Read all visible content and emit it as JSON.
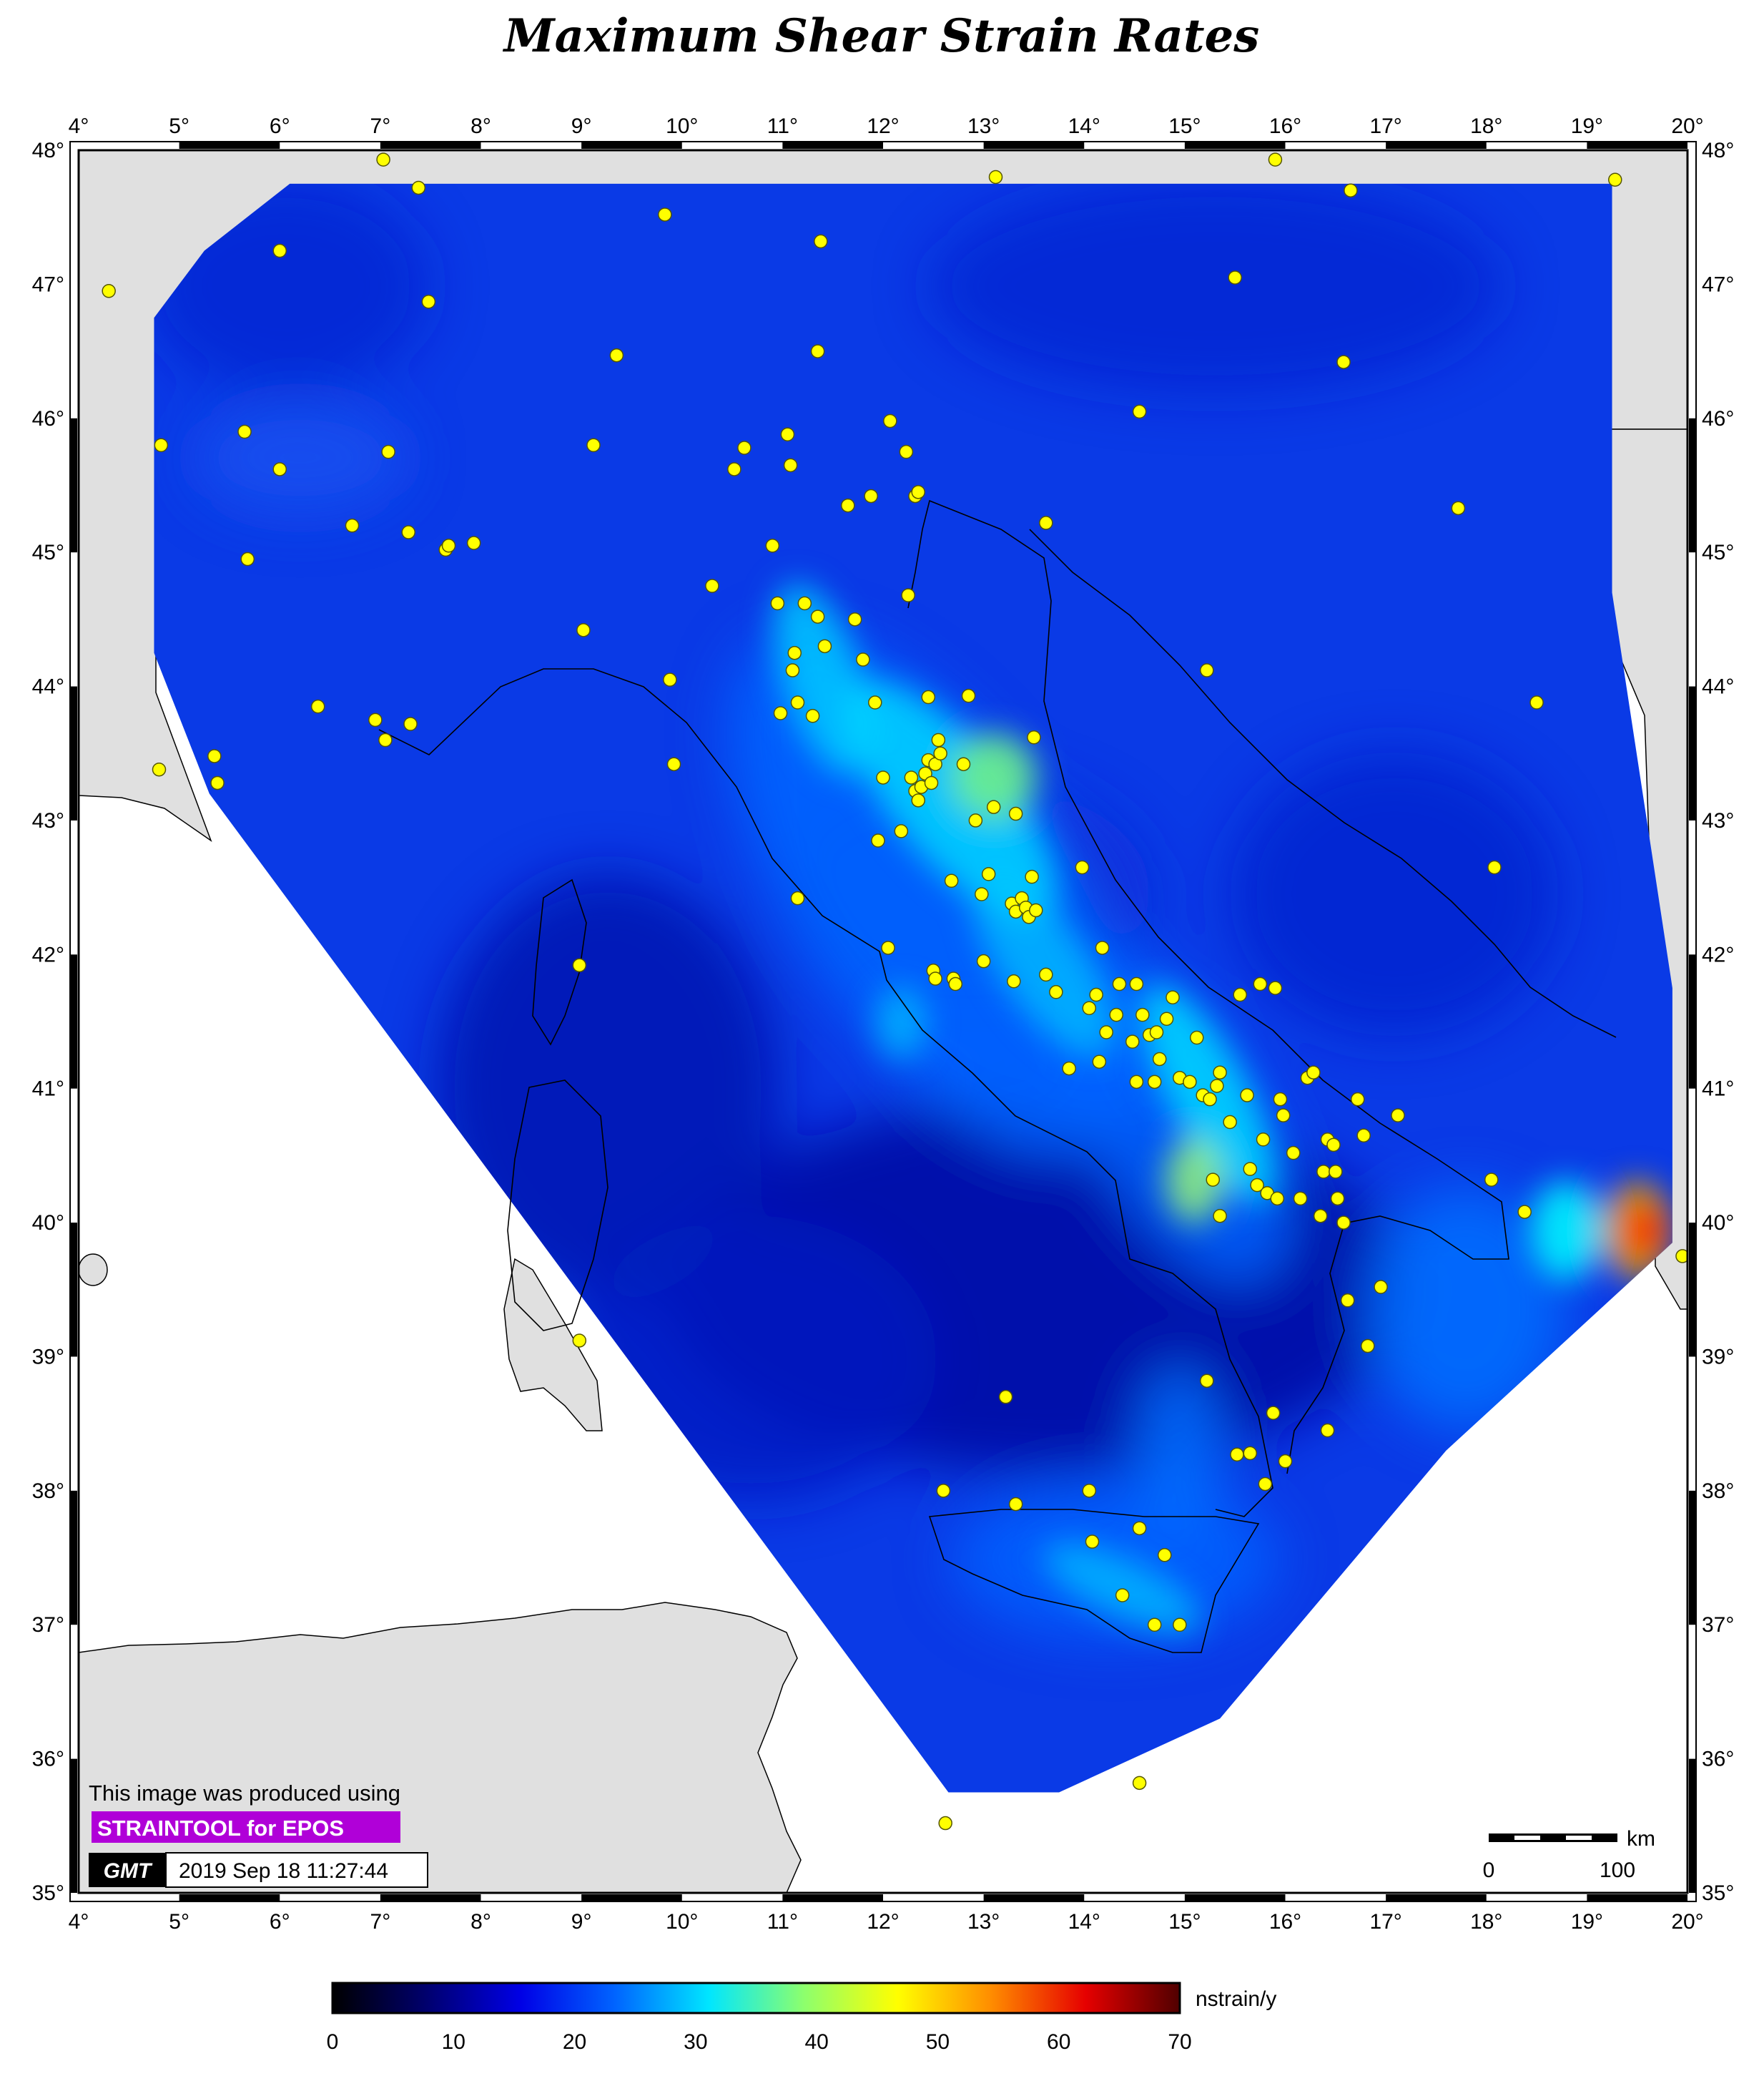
{
  "title": "Maximum Shear Strain Rates",
  "lon_ticks": [
    "4°",
    "5°",
    "6°",
    "7°",
    "8°",
    "9°",
    "10°",
    "11°",
    "12°",
    "13°",
    "14°",
    "15°",
    "16°",
    "17°",
    "18°",
    "19°",
    "20°"
  ],
  "lat_ticks": [
    "48°",
    "47°",
    "46°",
    "45°",
    "44°",
    "43°",
    "42°",
    "41°",
    "40°",
    "39°",
    "38°",
    "37°",
    "36°",
    "35°"
  ],
  "extent": {
    "lon_min": 4,
    "lon_max": 20,
    "lat_min": 35,
    "lat_max": 48
  },
  "credit": {
    "line1": "This image was produced using",
    "line2": "STRAINTOOL for EPOS",
    "logo": "GMT",
    "timestamp": "2019 Sep 18 11:27:44",
    "badge_color": "#b000d8"
  },
  "scale_bar": {
    "unit": "km",
    "labels": [
      "0",
      "100"
    ]
  },
  "colorbar": {
    "unit": "nstrain/y",
    "labels": [
      "0",
      "10",
      "20",
      "30",
      "40",
      "50",
      "60",
      "70"
    ],
    "stops": [
      "#000000",
      "#00006e",
      "#0000e6",
      "#0064ff",
      "#00e6ff",
      "#8cff6e",
      "#ffff00",
      "#ff8c00",
      "#e60000",
      "#500000"
    ]
  },
  "colors": {
    "strain_base": "#0a3ae6",
    "land": "#e0e0e0",
    "station": "#ffff00"
  },
  "stations": [
    [
      4.3,
      46.95
    ],
    [
      4.82,
      45.8
    ],
    [
      4.8,
      43.38
    ],
    [
      5.35,
      43.48
    ],
    [
      5.38,
      43.28
    ],
    [
      5.65,
      45.9
    ],
    [
      5.68,
      44.95
    ],
    [
      6.0,
      47.25
    ],
    [
      6.0,
      45.62
    ],
    [
      6.38,
      43.85
    ],
    [
      7.03,
      47.93
    ],
    [
      7.38,
      47.72
    ],
    [
      7.48,
      46.87
    ],
    [
      7.08,
      45.75
    ],
    [
      6.72,
      45.2
    ],
    [
      7.28,
      45.15
    ],
    [
      7.65,
      45.02
    ],
    [
      7.68,
      45.05
    ],
    [
      7.93,
      45.07
    ],
    [
      6.95,
      43.75
    ],
    [
      7.05,
      43.6
    ],
    [
      7.3,
      43.72
    ],
    [
      9.02,
      44.42
    ],
    [
      9.12,
      45.8
    ],
    [
      9.35,
      46.47
    ],
    [
      9.83,
      47.52
    ],
    [
      9.88,
      44.05
    ],
    [
      9.92,
      43.42
    ],
    [
      8.98,
      41.92
    ],
    [
      8.98,
      39.12
    ],
    [
      10.3,
      44.75
    ],
    [
      10.52,
      45.62
    ],
    [
      10.62,
      45.78
    ],
    [
      10.9,
      45.05
    ],
    [
      10.95,
      44.62
    ],
    [
      10.98,
      43.8
    ],
    [
      11.05,
      45.88
    ],
    [
      11.08,
      45.65
    ],
    [
      11.1,
      44.12
    ],
    [
      11.12,
      44.25
    ],
    [
      11.15,
      43.88
    ],
    [
      11.22,
      44.62
    ],
    [
      11.3,
      43.78
    ],
    [
      11.35,
      44.52
    ],
    [
      11.38,
      47.32
    ],
    [
      11.35,
      46.5
    ],
    [
      11.42,
      44.3
    ],
    [
      11.15,
      42.42
    ],
    [
      11.65,
      45.35
    ],
    [
      11.72,
      44.5
    ],
    [
      11.88,
      45.42
    ],
    [
      11.8,
      44.2
    ],
    [
      11.92,
      43.88
    ],
    [
      12.0,
      43.32
    ],
    [
      11.95,
      42.85
    ],
    [
      12.07,
      45.98
    ],
    [
      12.18,
      42.92
    ],
    [
      12.05,
      42.05
    ],
    [
      12.23,
      45.75
    ],
    [
      12.25,
      44.68
    ],
    [
      12.32,
      45.42
    ],
    [
      12.35,
      45.45
    ],
    [
      12.28,
      43.32
    ],
    [
      12.32,
      43.22
    ],
    [
      12.35,
      43.15
    ],
    [
      12.38,
      43.25
    ],
    [
      12.42,
      43.35
    ],
    [
      12.45,
      43.45
    ],
    [
      12.48,
      43.28
    ],
    [
      12.52,
      43.42
    ],
    [
      12.55,
      43.6
    ],
    [
      12.57,
      43.5
    ],
    [
      12.45,
      43.92
    ],
    [
      12.5,
      41.88
    ],
    [
      12.52,
      41.82
    ],
    [
      12.68,
      42.55
    ],
    [
      12.7,
      41.82
    ],
    [
      12.72,
      41.78
    ],
    [
      12.8,
      43.42
    ],
    [
      12.85,
      43.93
    ],
    [
      12.92,
      43.0
    ],
    [
      12.98,
      42.45
    ],
    [
      13.0,
      41.95
    ],
    [
      13.05,
      42.6
    ],
    [
      13.1,
      43.1
    ],
    [
      13.12,
      47.8
    ],
    [
      13.28,
      42.38
    ],
    [
      13.32,
      42.32
    ],
    [
      13.38,
      42.42
    ],
    [
      13.42,
      42.35
    ],
    [
      13.45,
      42.28
    ],
    [
      13.48,
      42.58
    ],
    [
      13.52,
      42.33
    ],
    [
      13.32,
      43.05
    ],
    [
      13.5,
      43.62
    ],
    [
      13.62,
      45.22
    ],
    [
      13.62,
      41.85
    ],
    [
      13.3,
      41.8
    ],
    [
      13.72,
      41.72
    ],
    [
      13.85,
      41.15
    ],
    [
      13.98,
      42.65
    ],
    [
      14.05,
      41.6
    ],
    [
      14.12,
      41.7
    ],
    [
      14.18,
      42.05
    ],
    [
      14.15,
      41.2
    ],
    [
      14.22,
      41.42
    ],
    [
      14.32,
      41.55
    ],
    [
      14.35,
      41.78
    ],
    [
      14.52,
      41.78
    ],
    [
      14.58,
      41.55
    ],
    [
      14.65,
      41.4
    ],
    [
      14.48,
      41.35
    ],
    [
      14.52,
      41.05
    ],
    [
      14.75,
      41.22
    ],
    [
      14.72,
      41.42
    ],
    [
      14.82,
      41.52
    ],
    [
      14.7,
      41.05
    ],
    [
      14.88,
      41.68
    ],
    [
      14.95,
      41.08
    ],
    [
      15.05,
      41.05
    ],
    [
      15.12,
      41.38
    ],
    [
      15.18,
      40.95
    ],
    [
      15.25,
      40.92
    ],
    [
      15.32,
      41.02
    ],
    [
      15.35,
      41.12
    ],
    [
      15.28,
      40.32
    ],
    [
      15.35,
      40.05
    ],
    [
      15.45,
      40.75
    ],
    [
      15.55,
      41.7
    ],
    [
      15.62,
      40.95
    ],
    [
      15.65,
      40.4
    ],
    [
      15.72,
      40.28
    ],
    [
      15.78,
      40.62
    ],
    [
      15.82,
      40.22
    ],
    [
      15.75,
      41.78
    ],
    [
      15.9,
      41.75
    ],
    [
      15.92,
      40.18
    ],
    [
      15.98,
      40.8
    ],
    [
      15.95,
      40.92
    ],
    [
      16.08,
      40.52
    ],
    [
      16.15,
      40.18
    ],
    [
      16.22,
      41.08
    ],
    [
      16.28,
      41.12
    ],
    [
      16.35,
      40.05
    ],
    [
      16.38,
      40.38
    ],
    [
      16.42,
      40.62
    ],
    [
      16.48,
      40.58
    ],
    [
      16.5,
      40.38
    ],
    [
      16.52,
      40.18
    ],
    [
      16.58,
      40.0
    ],
    [
      16.62,
      39.42
    ],
    [
      16.72,
      40.92
    ],
    [
      16.78,
      40.65
    ],
    [
      16.82,
      39.08
    ],
    [
      16.95,
      39.52
    ],
    [
      17.12,
      40.8
    ],
    [
      15.22,
      38.82
    ],
    [
      15.88,
      38.58
    ],
    [
      15.65,
      38.28
    ],
    [
      15.8,
      38.05
    ],
    [
      16.0,
      38.22
    ],
    [
      16.42,
      38.45
    ],
    [
      15.52,
      38.27
    ],
    [
      14.8,
      37.52
    ],
    [
      14.95,
      37.0
    ],
    [
      14.55,
      37.72
    ],
    [
      14.05,
      38.0
    ],
    [
      14.08,
      37.62
    ],
    [
      14.38,
      37.22
    ],
    [
      14.7,
      37.0
    ],
    [
      13.22,
      38.7
    ],
    [
      13.32,
      37.9
    ],
    [
      12.6,
      38.0
    ],
    [
      14.55,
      35.82
    ],
    [
      12.62,
      35.52
    ],
    [
      18.05,
      40.32
    ],
    [
      18.38,
      40.08
    ],
    [
      18.5,
      43.88
    ],
    [
      18.08,
      42.65
    ],
    [
      17.72,
      45.33
    ],
    [
      16.58,
      46.42
    ],
    [
      16.65,
      47.7
    ],
    [
      15.9,
      47.93
    ],
    [
      15.5,
      47.05
    ],
    [
      14.55,
      46.05
    ],
    [
      15.22,
      44.12
    ],
    [
      19.28,
      47.78
    ],
    [
      19.95,
      39.75
    ]
  ]
}
